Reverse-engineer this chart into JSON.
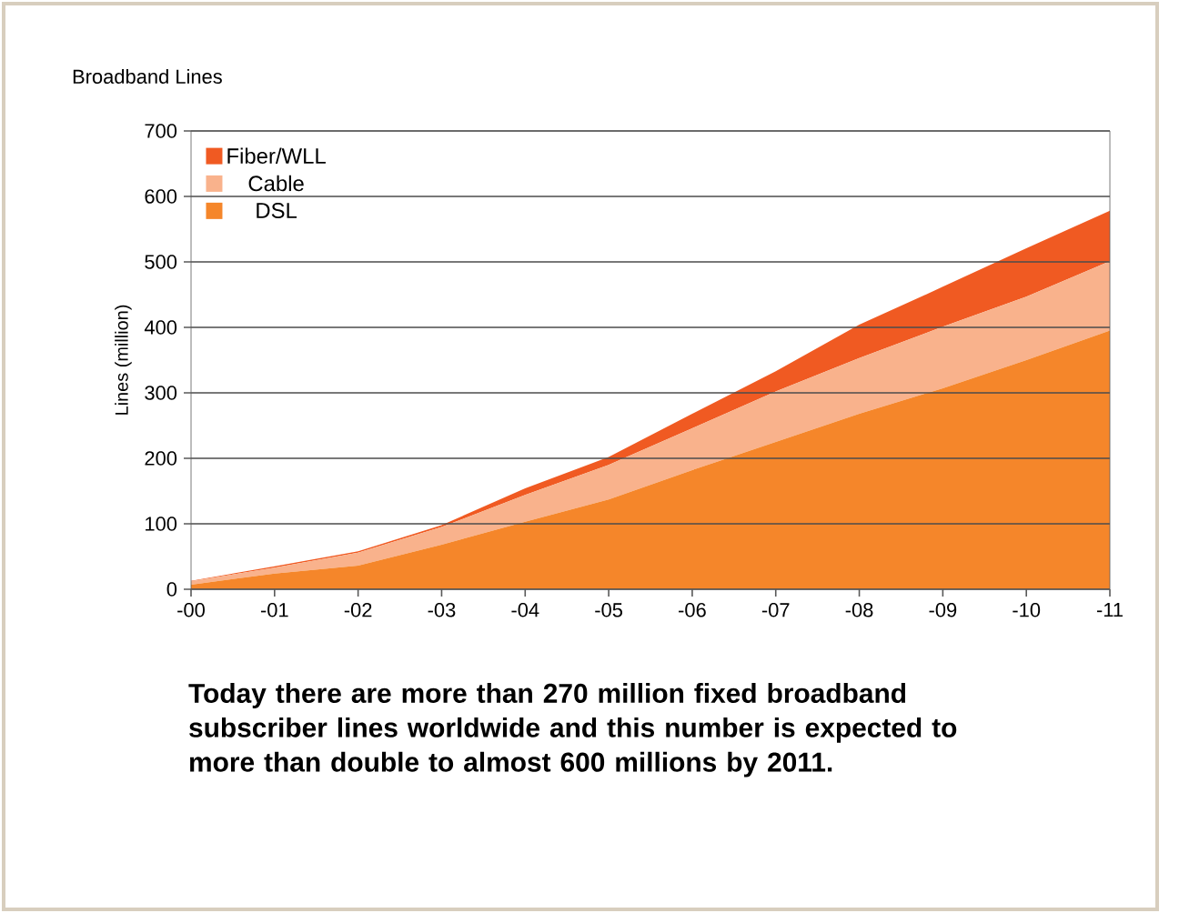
{
  "chart_data": {
    "type": "area",
    "stacked": true,
    "title": "Broadband Lines",
    "ylabel": "Lines (million)",
    "categories": [
      "-00",
      "-01",
      "-02",
      "-03",
      "-04",
      "-05",
      "-06",
      "-07",
      "-08",
      "-09",
      "-10",
      "-11"
    ],
    "series": [
      {
        "name": "DSL",
        "color": "#f5862a",
        "values": [
          7,
          24,
          36,
          68,
          103,
          137,
          182,
          225,
          268,
          307,
          350,
          395
        ]
      },
      {
        "name": "Cable",
        "color": "#f9b28c",
        "values": [
          5,
          9,
          20,
          27,
          41,
          53,
          64,
          77,
          85,
          94,
          97,
          106
        ]
      },
      {
        "name": "Fiber/WLL",
        "color": "#f05a22",
        "values": [
          1,
          2,
          2,
          3,
          10,
          12,
          22,
          31,
          51,
          61,
          74,
          77
        ]
      }
    ],
    "ylim": [
      0,
      700
    ],
    "yticks": [
      0,
      100,
      200,
      300,
      400,
      500,
      600,
      700
    ],
    "grid": "y",
    "legend": "top left",
    "annotations": [
      "Today there are more than 270 million fixed broadband subscriber lines worldwide and this number is expected to more than double to almost 600 millions by 2011."
    ]
  }
}
